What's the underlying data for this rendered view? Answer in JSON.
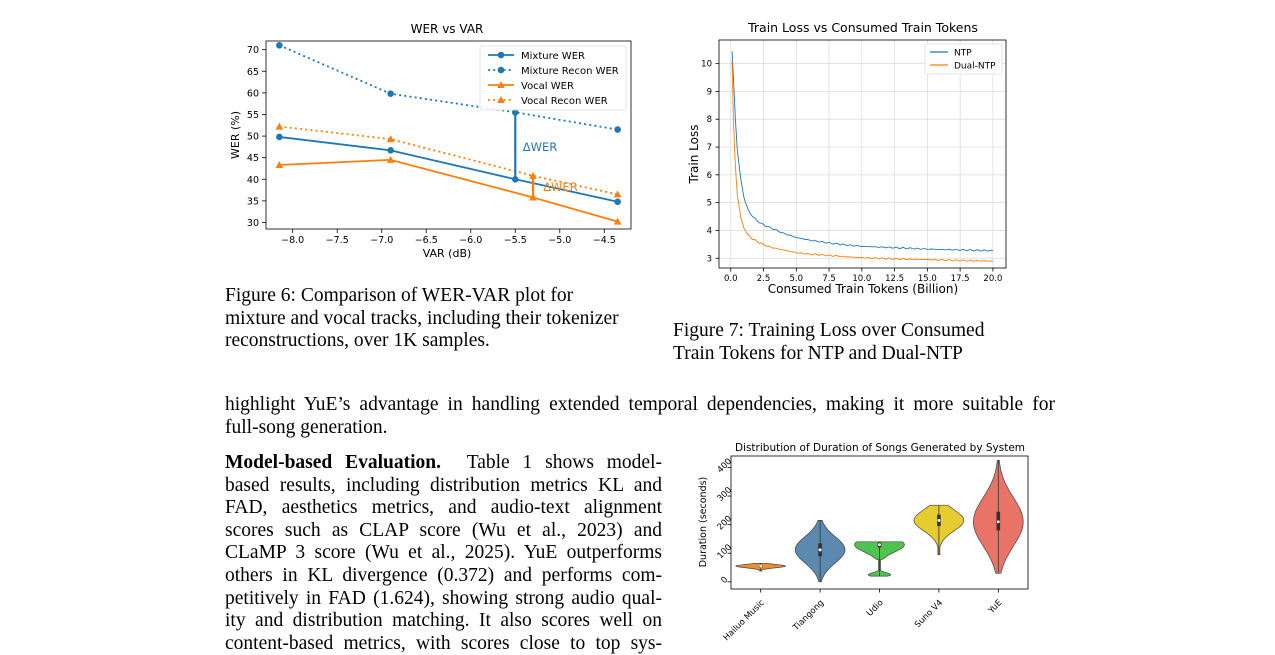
{
  "fig6": {
    "caption": "Figure 6: Comparison of WER-VAR plot for mixture and vocal tracks, including their tokenizer reconstructions, over 1K samples.",
    "caption_lines": [
      "Figure 6: Comparison of WER-VAR plot for",
      "mixture and vocal tracks, including their tokenizer",
      "reconstructions, over 1K samples."
    ]
  },
  "fig7": {
    "caption_lines": [
      "Figure 7: Training Loss over Consumed",
      "Train Tokens for NTP and Dual-NTP"
    ]
  },
  "body": {
    "para1_lines": [
      "highlight YuE’s advantage in handling extended temporal dependencies, making it more suitable for",
      "full-song generation."
    ],
    "para2_runin": "Model-based Evaluation.",
    "para2_lines": [
      "Table 1 shows model-",
      "based results, including distribution metrics KL and",
      "FAD, aesthetics metrics, and audio-text alignment",
      "scores such as CLAP score (Wu et al., 2023) and",
      "CLaMP 3 score (Wu et al., 2025). YuE outperforms",
      "others in KL divergence (0.372) and performs com-",
      "petitively in FAD (1.624), showing strong audio qual-",
      "ity and distribution matching. It also scores well on",
      "content-based metrics, with scores close to top sys-"
    ]
  },
  "colors": {
    "blue": "#1f77b4",
    "orange": "#ff7f0e",
    "green": "#2ca02c",
    "yellow": "#e4c81e",
    "red": "#e8675a"
  },
  "chart_data": [
    {
      "type": "line",
      "title": "WER vs VAR",
      "xlabel": "VAR (dB)",
      "ylabel": "WER (%)",
      "xlim": [
        -8.3,
        -4.2
      ],
      "ylim": [
        28.5,
        72
      ],
      "xticks": [
        -8.0,
        -7.5,
        -7.0,
        -6.5,
        -6.0,
        -5.5,
        -5.0,
        -4.5
      ],
      "xtick_labels": [
        "−8.0",
        "−7.5",
        "−7.0",
        "−6.5",
        "−6.0",
        "−5.5",
        "−5.0",
        "−4.5"
      ],
      "yticks": [
        30,
        35,
        40,
        45,
        50,
        55,
        60,
        65,
        70
      ],
      "legend_position": "top-right",
      "series": [
        {
          "name": "Mixture WER",
          "color": "#1f77b4",
          "style": "solid",
          "marker": "circle",
          "x": [
            -8.15,
            -6.9,
            -5.5,
            -4.35
          ],
          "y": [
            49.8,
            46.7,
            40,
            34.8
          ]
        },
        {
          "name": "Mixture Recon WER",
          "color": "#1f77b4",
          "style": "dotted",
          "marker": "circle",
          "x": [
            -8.15,
            -6.9,
            -5.5,
            -4.35
          ],
          "y": [
            71,
            59.8,
            55.5,
            51.5
          ]
        },
        {
          "name": "Vocal WER",
          "color": "#ff7f0e",
          "style": "solid",
          "marker": "triangle",
          "x": [
            -8.15,
            -6.9,
            -5.3,
            -4.35
          ],
          "y": [
            43.3,
            44.5,
            35.8,
            30.2
          ]
        },
        {
          "name": "Vocal Recon WER",
          "color": "#ff7f0e",
          "style": "dotted",
          "marker": "triangle",
          "x": [
            -8.15,
            -6.9,
            -5.3,
            -4.35
          ],
          "y": [
            52.2,
            49.3,
            40.8,
            36.5
          ]
        }
      ],
      "annotations": [
        {
          "text": "ΔWER",
          "color": "#1f77b4",
          "x": -5.5,
          "y_from": 40,
          "y_to": 55.5,
          "label_x": -5.45,
          "label_y": 47.5
        },
        {
          "text": "ΔWER",
          "color": "#ff7f0e",
          "x": -5.3,
          "y_from": 35.8,
          "y_to": 40.8,
          "label_x": -5.22,
          "label_y": 38.2
        }
      ]
    },
    {
      "type": "line",
      "title": "Train Loss vs Consumed Train Tokens",
      "xlabel": "Consumed Train Tokens (Billion)",
      "ylabel": "Train Loss",
      "xlim": [
        -0.9,
        21
      ],
      "ylim": [
        2.65,
        10.85
      ],
      "xticks": [
        0.0,
        2.5,
        5.0,
        7.5,
        10.0,
        12.5,
        15.0,
        17.5,
        20.0
      ],
      "xtick_labels": [
        "0.0",
        "2.5",
        "5.0",
        "7.5",
        "10.0",
        "12.5",
        "15.0",
        "17.5",
        "20.0"
      ],
      "yticks": [
        3,
        4,
        5,
        6,
        7,
        8,
        9,
        10
      ],
      "grid": true,
      "legend_position": "top-right",
      "series": [
        {
          "name": "NTP",
          "color": "#1f77b4",
          "x": [
            0.1,
            0.2,
            0.35,
            0.5,
            0.75,
            1.0,
            1.25,
            1.5,
            2.0,
            2.5,
            3.0,
            4.0,
            5.0,
            6.0,
            7.5,
            9.0,
            10.0,
            12.5,
            15.0,
            17.5,
            20.0
          ],
          "y": [
            10.45,
            9.5,
            8.0,
            6.9,
            5.9,
            5.2,
            4.85,
            4.6,
            4.35,
            4.2,
            4.1,
            3.9,
            3.75,
            3.65,
            3.55,
            3.47,
            3.43,
            3.38,
            3.33,
            3.3,
            3.27
          ]
        },
        {
          "name": "Dual-NTP",
          "color": "#ff7f0e",
          "x": [
            0.1,
            0.2,
            0.35,
            0.5,
            0.75,
            1.0,
            1.25,
            1.5,
            2.0,
            2.5,
            3.0,
            4.0,
            5.0,
            6.0,
            7.5,
            9.0,
            10.0,
            12.5,
            15.0,
            17.5,
            20.0
          ],
          "y": [
            10.1,
            8.0,
            6.3,
            5.3,
            4.5,
            4.1,
            3.9,
            3.75,
            3.6,
            3.5,
            3.4,
            3.3,
            3.2,
            3.15,
            3.1,
            3.05,
            3.02,
            2.98,
            2.95,
            2.92,
            2.9
          ]
        }
      ]
    },
    {
      "type": "violin",
      "title": "Distribution of Duration of Songs Generated by System",
      "xlabel": "",
      "ylabel": "Duration (seconds)",
      "ylim": [
        -25,
        440
      ],
      "yticks": [
        0,
        100,
        200,
        300,
        400
      ],
      "categories": [
        "Hailuo Music",
        "Tiangong",
        "Udio",
        "Suno V4",
        "YuE"
      ],
      "colors": [
        "#e8871e",
        "#4e7fa8",
        "#3fbf3f",
        "#e4c81e",
        "#e8675a"
      ],
      "min": [
        38,
        0,
        20,
        95,
        30
      ],
      "max": [
        65,
        215,
        140,
        268,
        425
      ],
      "median": [
        55,
        112,
        130,
        215,
        210
      ],
      "q1": [
        50,
        90,
        120,
        195,
        180
      ],
      "q3": [
        58,
        135,
        138,
        235,
        245
      ]
    }
  ]
}
